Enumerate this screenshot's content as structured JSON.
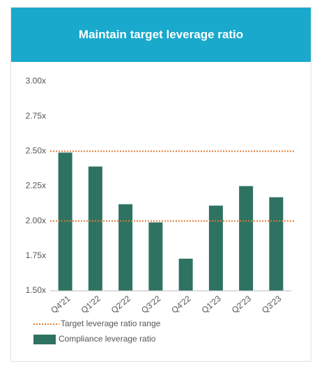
{
  "chart_data": {
    "type": "bar",
    "title": "Maintain target leverage ratio",
    "categories": [
      "Q4'21",
      "Q1'22",
      "Q2'22",
      "Q3'22",
      "Q4'22",
      "Q1'23",
      "Q2'23",
      "Q3'23"
    ],
    "series": [
      {
        "name": "Compliance leverage ratio",
        "color": "#2e7262",
        "values": [
          2.49,
          2.39,
          2.12,
          1.99,
          1.73,
          2.11,
          2.25,
          2.17
        ]
      }
    ],
    "reference_lines": {
      "name": "Target leverage ratio range",
      "color": "#e07b32",
      "values": [
        2.5,
        2.0
      ]
    },
    "ylim": [
      1.5,
      3.0
    ],
    "yticks": [
      {
        "value": 1.5,
        "label": "1.50x"
      },
      {
        "value": 1.75,
        "label": "1.75x"
      },
      {
        "value": 2.0,
        "label": "2.00x"
      },
      {
        "value": 2.25,
        "label": "2.25x"
      },
      {
        "value": 2.5,
        "label": "2.50x"
      },
      {
        "value": 2.75,
        "label": "2.75x"
      },
      {
        "value": 3.0,
        "label": "3.00x"
      }
    ]
  }
}
